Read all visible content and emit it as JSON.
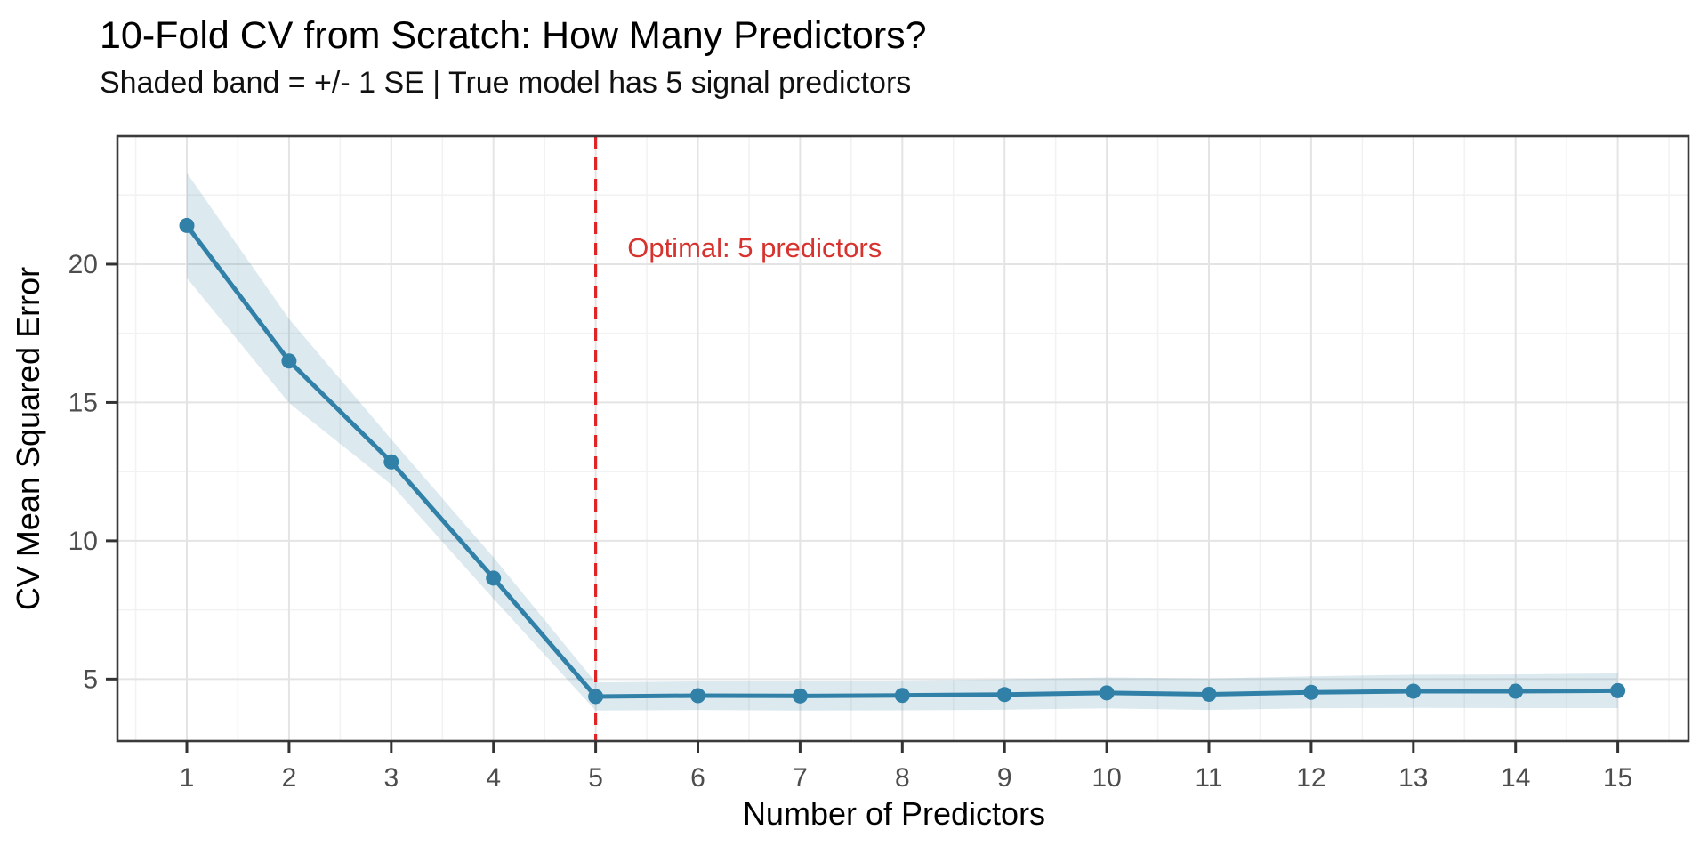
{
  "page": {
    "background": "#ffffff"
  },
  "chart_data": {
    "type": "line",
    "title": "10-Fold CV from Scratch: How Many Predictors?",
    "subtitle": "Shaded band = +/- 1 SE | True model has 5 signal predictors",
    "xlabel": "Number of Predictors",
    "ylabel": "CV Mean Squared Error",
    "x": [
      1,
      2,
      3,
      4,
      5,
      6,
      7,
      8,
      9,
      10,
      11,
      12,
      13,
      14,
      15
    ],
    "series": [
      {
        "name": "CV MSE",
        "values": [
          21.4,
          16.5,
          12.85,
          8.65,
          4.37,
          4.4,
          4.39,
          4.41,
          4.44,
          4.5,
          4.45,
          4.52,
          4.56,
          4.56,
          4.58
        ]
      }
    ],
    "se": [
      1.9,
      1.52,
      0.82,
      0.75,
      0.51,
      0.52,
      0.53,
      0.54,
      0.55,
      0.56,
      0.57,
      0.58,
      0.6,
      0.61,
      0.63
    ],
    "x_ticks": [
      1,
      2,
      3,
      4,
      5,
      6,
      7,
      8,
      9,
      10,
      11,
      12,
      13,
      14,
      15
    ],
    "y_ticks": [
      5,
      10,
      15,
      20
    ],
    "x_domain": [
      0.321,
      15.691
    ],
    "y_domain": [
      2.76,
      24.63
    ],
    "grid": "on",
    "legend": "none",
    "vline": {
      "x": 5,
      "style": "dashed",
      "label": "optimal-k-line"
    },
    "annotation": {
      "text": "Optimal: 5 predictors",
      "x": 5.31,
      "y": 20.25
    },
    "colors": {
      "line": "#3180A8",
      "point": "#3180A8",
      "ribbon": "rgba(49,128,168,0.17)",
      "grid_major": "#E4E4E4",
      "grid_minor": "#F2F2F2",
      "panel_border": "#3A3A3A",
      "tick_mark": "#333333",
      "tick_label": "#4D4D4D",
      "axis_title": "#000000",
      "vline": "#E02424",
      "annotation": "#D6332F"
    }
  }
}
